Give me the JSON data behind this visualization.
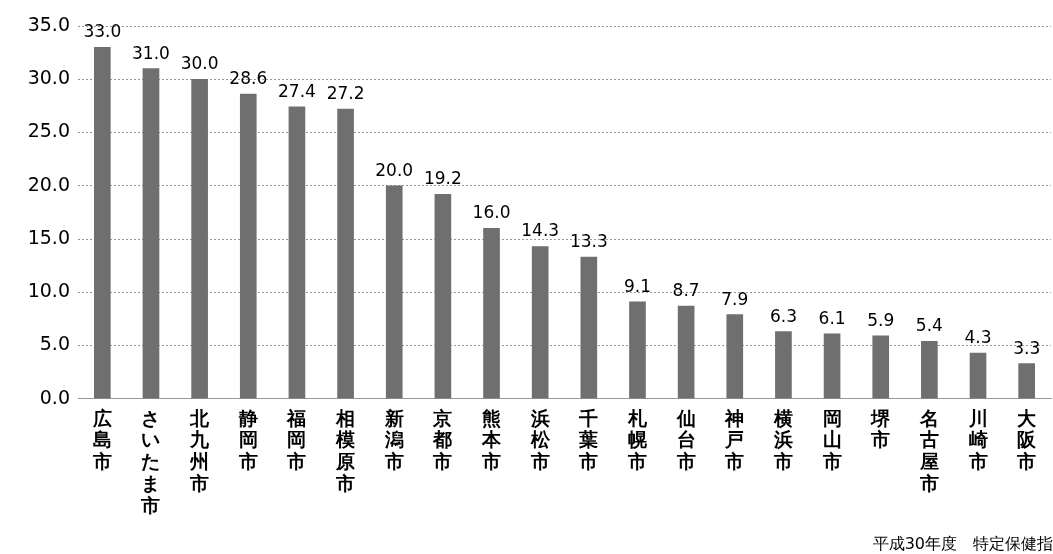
{
  "chart_data": {
    "type": "bar",
    "categories": [
      "広島市",
      "さいたま市",
      "北九州市",
      "静岡市",
      "福岡市",
      "相模原市",
      "新潟市",
      "京都市",
      "熊本市",
      "浜松市",
      "千葉市",
      "札幌市",
      "仙台市",
      "神戸市",
      "横浜市",
      "岡山市",
      "堺市",
      "名古屋市",
      "川崎市",
      "大阪市"
    ],
    "values": [
      33.0,
      31.0,
      30.0,
      28.6,
      27.4,
      27.2,
      20.0,
      19.2,
      16.0,
      14.3,
      13.3,
      9.1,
      8.7,
      7.9,
      6.3,
      6.1,
      5.9,
      5.4,
      4.3,
      3.3
    ],
    "color": "#6f6f6f",
    "ylim": [
      0,
      35
    ],
    "yticks": [
      {
        "value": 0,
        "label": "0.0"
      },
      {
        "value": 5,
        "label": "5.0"
      },
      {
        "value": 10,
        "label": "10.0"
      },
      {
        "value": 15,
        "label": "15.0"
      },
      {
        "value": 20,
        "label": "20.0"
      },
      {
        "value": 25,
        "label": "25.0"
      },
      {
        "value": 30,
        "label": "30.0"
      },
      {
        "value": 35,
        "label": "35.0"
      }
    ],
    "grid": "y",
    "value_labels": [
      "33.0",
      "31.0",
      "30.0",
      "28.6",
      "27.4",
      "27.2",
      "20.0",
      "19.2",
      "16.0",
      "14.3",
      "13.3",
      "9.1",
      "8.7",
      "7.9",
      "6.3",
      "6.1",
      "5.9",
      "5.4",
      "4.3",
      "3.3"
    ],
    "annotations": [
      "平成30年度　特定保健指"
    ]
  }
}
